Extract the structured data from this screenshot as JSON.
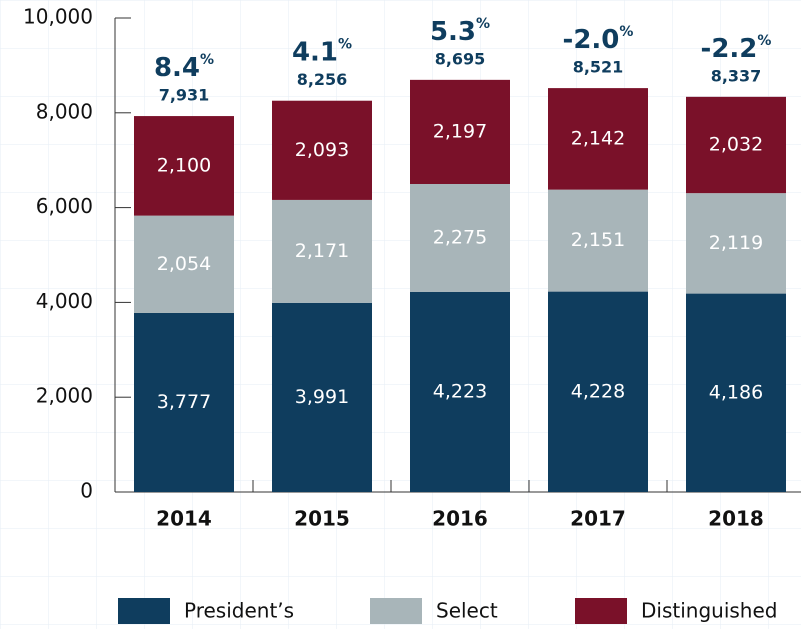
{
  "chart_data": {
    "type": "bar",
    "stacked": true,
    "categories": [
      "2014",
      "2015",
      "2016",
      "2017",
      "2018"
    ],
    "series": [
      {
        "name": "President’s",
        "color": "#0f3d5e",
        "values": [
          3777,
          3991,
          4223,
          4228,
          4186
        ],
        "value_labels": [
          "3,777",
          "3,991",
          "4,223",
          "4,228",
          "4,186"
        ]
      },
      {
        "name": "Select",
        "color": "#a8b5b9",
        "values": [
          2054,
          2171,
          2275,
          2151,
          2119
        ],
        "value_labels": [
          "2,054",
          "2,171",
          "2,275",
          "2,151",
          "2,119"
        ]
      },
      {
        "name": "Distinguished",
        "color": "#7a1129",
        "values": [
          2100,
          2093,
          2197,
          2142,
          2032
        ],
        "value_labels": [
          "2,100",
          "2,093",
          "2,197",
          "2,142",
          "2,032"
        ]
      }
    ],
    "totals": {
      "values": [
        7931,
        8256,
        8695,
        8521,
        8337
      ],
      "value_labels": [
        "7,931",
        "8,256",
        "8,695",
        "8,521",
        "8,337"
      ]
    },
    "growth": {
      "values": [
        8.4,
        4.1,
        5.3,
        -2.0,
        -2.2
      ],
      "value_labels": [
        "8.4",
        "4.1",
        "5.3",
        "-2.0",
        "-2.2"
      ],
      "unit": "%"
    },
    "ylim": [
      0,
      10000
    ],
    "yticks": [
      0,
      {
        "value": 2000,
        "label": "2,000"
      },
      {
        "value": 4000,
        "label": "4,000"
      },
      {
        "value": 6000,
        "label": "6,000"
      },
      {
        "value": 8000,
        "label": "8,000"
      },
      {
        "value": 10000,
        "label": "10,000"
      }
    ],
    "legend": "bottom"
  }
}
